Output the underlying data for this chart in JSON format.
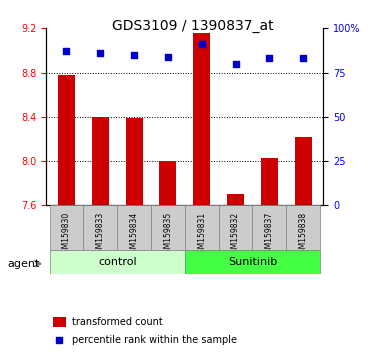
{
  "title": "GDS3109 / 1390837_at",
  "samples": [
    "GSM159830",
    "GSM159833",
    "GSM159834",
    "GSM159835",
    "GSM159831",
    "GSM159832",
    "GSM159837",
    "GSM159838"
  ],
  "transformed_counts": [
    8.78,
    8.4,
    8.385,
    8.0,
    9.16,
    7.7,
    8.03,
    8.22
  ],
  "percentile_ranks": [
    87,
    86,
    85,
    84,
    91,
    80,
    83,
    83
  ],
  "ylim_left": [
    7.6,
    9.2
  ],
  "ylim_right": [
    0,
    100
  ],
  "yticks_left": [
    7.6,
    8.0,
    8.4,
    8.8,
    9.2
  ],
  "yticks_right": [
    0,
    25,
    50,
    75,
    100
  ],
  "ytick_labels_right": [
    "0",
    "25",
    "50",
    "75",
    "100%"
  ],
  "grid_values": [
    8.8,
    8.4,
    8.0
  ],
  "bar_color": "#cc0000",
  "dot_color": "#0000cc",
  "control_indices": [
    0,
    1,
    2,
    3
  ],
  "sunitinib_indices": [
    4,
    5,
    6,
    7
  ],
  "control_label": "control",
  "sunitinib_label": "Sunitinib",
  "agent_label": "agent",
  "legend_bar_label": "transformed count",
  "legend_dot_label": "percentile rank within the sample",
  "control_bg": "#ccffcc",
  "sunitinib_bg": "#44ff44",
  "tick_bg": "#cccccc",
  "bar_width": 0.5
}
